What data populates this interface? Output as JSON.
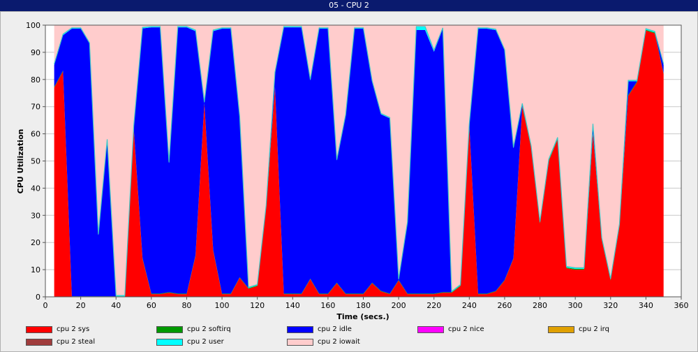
{
  "window": {
    "title": "05 - CPU 2"
  },
  "chart_data": {
    "type": "area",
    "stacked": true,
    "title": "05 - CPU 2",
    "xlabel": "Time (secs.)",
    "ylabel": "CPU Utilization",
    "xlim": [
      0,
      360
    ],
    "ylim": [
      0,
      100
    ],
    "xticks": [
      0,
      20,
      40,
      60,
      80,
      100,
      120,
      140,
      160,
      180,
      200,
      220,
      240,
      260,
      280,
      300,
      320,
      340,
      360
    ],
    "yticks": [
      0,
      10,
      20,
      30,
      40,
      50,
      60,
      70,
      80,
      90,
      100
    ],
    "grid": true,
    "legend_position": "bottom",
    "x": [
      5,
      10,
      15,
      20,
      25,
      30,
      35,
      40,
      45,
      50,
      55,
      60,
      65,
      70,
      75,
      80,
      85,
      90,
      95,
      100,
      105,
      110,
      115,
      120,
      125,
      130,
      135,
      140,
      145,
      150,
      155,
      160,
      165,
      170,
      175,
      180,
      185,
      190,
      195,
      200,
      205,
      210,
      215,
      220,
      225,
      230,
      235,
      240,
      245,
      250,
      255,
      260,
      265,
      270,
      275,
      280,
      285,
      290,
      295,
      300,
      305,
      310,
      315,
      320,
      325,
      330,
      335,
      340,
      345,
      350
    ],
    "series": [
      {
        "name": "cpu 2 sys",
        "color": "#ff0000",
        "values": [
          77,
          83,
          0,
          0,
          0,
          0,
          0,
          0,
          0,
          62,
          14,
          1,
          1,
          1.5,
          1,
          1,
          15,
          71,
          17,
          1,
          1,
          7,
          3,
          4,
          33,
          77,
          1,
          1,
          1,
          6.5,
          1,
          1,
          5,
          1,
          1,
          1,
          5,
          2,
          1,
          6,
          1,
          1,
          1,
          1,
          1.5,
          1.5,
          4,
          63,
          1,
          1,
          2,
          6,
          14,
          70,
          55,
          27,
          50,
          58,
          10.5,
          10,
          10,
          60,
          21,
          6,
          26,
          74,
          79,
          98,
          97,
          82
        ]
      },
      {
        "name": "cpu 2 softirq",
        "color": "#009900",
        "values": [
          0.3,
          0.3,
          0.2,
          0.2,
          0.2,
          0.2,
          0.2,
          0.2,
          0.2,
          0.3,
          0.3,
          0.2,
          0.2,
          0.2,
          0.2,
          0.2,
          0.3,
          0.3,
          0.3,
          0.2,
          0.2,
          0.2,
          0.2,
          0.2,
          0.3,
          0.3,
          0.2,
          0.2,
          0.2,
          0.2,
          0.2,
          0.2,
          0.2,
          0.2,
          0.2,
          0.2,
          0.2,
          0.2,
          0.2,
          0.2,
          0.2,
          0.2,
          0.2,
          0.2,
          0.2,
          0.2,
          0.2,
          0.3,
          0.2,
          0.2,
          0.2,
          0.2,
          0.2,
          0.3,
          0.3,
          0.3,
          0.3,
          0.3,
          0.3,
          0.3,
          0.3,
          0.3,
          0.3,
          0.3,
          0.3,
          0.3,
          0.3,
          0.3,
          0.3,
          0.3
        ]
      },
      {
        "name": "cpu 2 idle",
        "color": "#0000ff",
        "values": [
          8,
          13,
          98.5,
          98.5,
          93,
          22.5,
          57.5,
          0,
          0,
          0,
          84.5,
          98,
          98,
          47.5,
          98,
          98,
          82.5,
          0,
          80.5,
          97.5,
          97.5,
          59,
          0,
          0,
          0,
          5,
          98,
          98,
          98,
          73,
          97.5,
          97.5,
          45,
          65.5,
          97.5,
          97.5,
          74,
          65,
          64.5,
          0,
          26,
          97,
          97,
          89,
          97,
          0,
          0,
          0,
          97.5,
          97.5,
          96,
          84.5,
          40.5,
          0.5,
          0,
          0,
          0,
          0,
          0,
          0,
          0,
          3,
          0,
          0,
          0,
          5,
          0,
          0,
          0,
          3
        ]
      },
      {
        "name": "cpu 2 nice",
        "color": "#ff00ff",
        "values": [
          0,
          0,
          0,
          0,
          0,
          0,
          0,
          0,
          0,
          0,
          0,
          0,
          0,
          0,
          0,
          0,
          0,
          0,
          0,
          0,
          0,
          0,
          0,
          0,
          0,
          0,
          0,
          0,
          0,
          0,
          0,
          0,
          0,
          0,
          0,
          0,
          0,
          0,
          0,
          0,
          0,
          0,
          0,
          0,
          0,
          0,
          0,
          0,
          0,
          0,
          0,
          0,
          0,
          0,
          0,
          0,
          0,
          0,
          0,
          0,
          0,
          0,
          0,
          0,
          0,
          0,
          0,
          0,
          0,
          0
        ]
      },
      {
        "name": "cpu 2 irq",
        "color": "#e0a000",
        "values": [
          0,
          0,
          0,
          0,
          0,
          0,
          0,
          0,
          0,
          0,
          0,
          0,
          0,
          0,
          0,
          0,
          0,
          0,
          0,
          0,
          0,
          0,
          0,
          0,
          0,
          0,
          0,
          0,
          0,
          0,
          0,
          0,
          0,
          0,
          0,
          0,
          0,
          0,
          0,
          0,
          0,
          0,
          0,
          0,
          0,
          0,
          0,
          0,
          0,
          0,
          0,
          0,
          0,
          0,
          0,
          0,
          0,
          0,
          0,
          0,
          0,
          0,
          0,
          0,
          0,
          0,
          0,
          0,
          0,
          0
        ]
      },
      {
        "name": "cpu 2 steal",
        "color": "#a03c3c",
        "values": [
          0,
          0,
          0,
          0,
          0,
          0,
          0,
          0,
          0,
          0,
          0,
          0,
          0,
          0,
          0,
          0,
          0,
          0,
          0,
          0,
          0,
          0,
          0,
          0,
          0,
          0,
          0,
          0,
          0,
          0,
          0,
          0,
          0,
          0,
          0,
          0,
          0,
          0,
          0,
          0,
          0,
          0,
          0,
          0,
          0,
          0,
          0,
          0,
          0,
          0,
          0,
          0,
          0,
          0,
          0,
          0,
          0,
          0,
          0,
          0,
          0,
          0,
          0,
          0,
          0,
          0,
          0,
          0,
          0,
          0
        ]
      },
      {
        "name": "cpu 2 user",
        "color": "#00ffff",
        "values": [
          0.4,
          0.4,
          0.3,
          0.3,
          0.3,
          0.3,
          0.3,
          0.3,
          0.3,
          0.4,
          0.4,
          0.3,
          0.3,
          0.3,
          0.3,
          0.3,
          0.4,
          0.4,
          0.4,
          0.3,
          0.3,
          0.3,
          0.3,
          0.3,
          0.4,
          0.4,
          0.3,
          0.3,
          0.3,
          0.3,
          0.3,
          0.3,
          0.3,
          0.3,
          0.3,
          0.3,
          0.3,
          0.3,
          0.3,
          0.3,
          0.3,
          1.3,
          1.3,
          0.6,
          0.3,
          0.3,
          0.3,
          0.4,
          0.3,
          0.3,
          0.3,
          0.3,
          0.3,
          0.4,
          0.4,
          0.4,
          0.4,
          0.4,
          0.4,
          0.4,
          0.4,
          0.4,
          0.4,
          0.4,
          0.4,
          0.4,
          0.4,
          0.4,
          0.4,
          0.4
        ]
      },
      {
        "name": "cpu 2 iowait",
        "color": "#ffcccc",
        "values": [
          14.3,
          3.3,
          1,
          1,
          6.5,
          77,
          42,
          99.5,
          99.5,
          37.3,
          0.8,
          0.5,
          0.5,
          50.5,
          0.5,
          0.5,
          1.8,
          28.3,
          1.8,
          1,
          1,
          33.5,
          96.5,
          95.5,
          66.3,
          17.3,
          0.5,
          0.5,
          0.5,
          20,
          1,
          1,
          49.5,
          33,
          1,
          1,
          20.5,
          32.5,
          34,
          93.5,
          72.5,
          0.5,
          0.5,
          9.2,
          1,
          98,
          95.5,
          36.3,
          1,
          1,
          1.5,
          9,
          45,
          28.8,
          44.3,
          72.3,
          49.3,
          41.3,
          88.8,
          89.3,
          89.3,
          36.3,
          78.3,
          93.3,
          73.3,
          20.3,
          20.3,
          1.3,
          2.3,
          14.3
        ]
      }
    ]
  }
}
